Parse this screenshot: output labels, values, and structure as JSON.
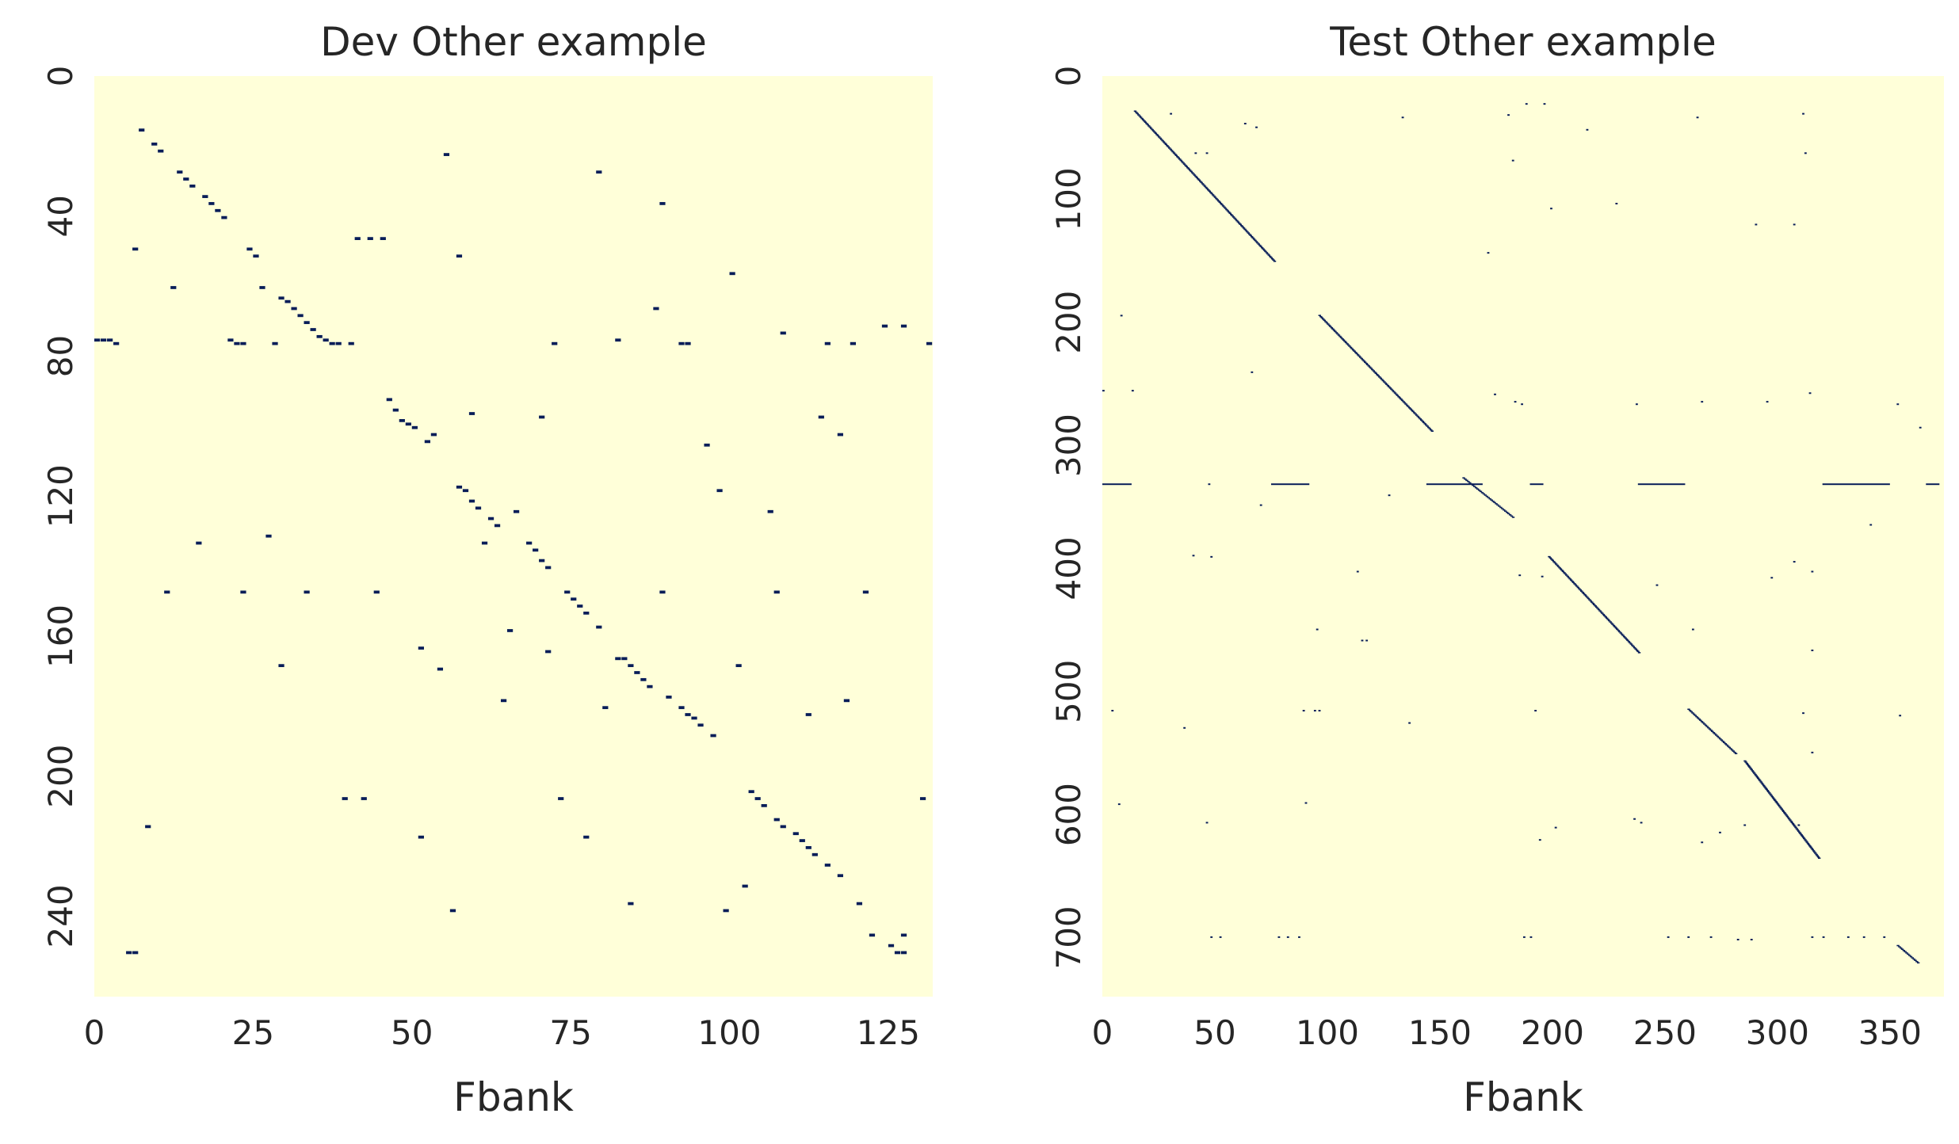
{
  "chart_data": [
    {
      "type": "heatmap",
      "title": "Dev Other example",
      "xlabel": "Fbank",
      "ylabel": "",
      "xlim": [
        0,
        132
      ],
      "ylim": [
        0,
        263
      ],
      "x_ticks": [
        0,
        25,
        50,
        75,
        100,
        125
      ],
      "y_ticks": [
        0,
        40,
        80,
        120,
        160,
        200,
        240
      ],
      "colormap": "YlGnBu",
      "background_color": "#ffffd9",
      "mark_color": "#081d58",
      "cells": [
        [
          7,
          15
        ],
        [
          9,
          19
        ],
        [
          10,
          21
        ],
        [
          13,
          27
        ],
        [
          14,
          29
        ],
        [
          15,
          31
        ],
        [
          17,
          34
        ],
        [
          18,
          36
        ],
        [
          19,
          38
        ],
        [
          20,
          40
        ],
        [
          6,
          49
        ],
        [
          12,
          60
        ],
        [
          24,
          49
        ],
        [
          25,
          51
        ],
        [
          26,
          60
        ],
        [
          29,
          63
        ],
        [
          30,
          64
        ],
        [
          31,
          66
        ],
        [
          32,
          68
        ],
        [
          33,
          70
        ],
        [
          34,
          72
        ],
        [
          35,
          74
        ],
        [
          36,
          75
        ],
        [
          0,
          75
        ],
        [
          1,
          75
        ],
        [
          2,
          75
        ],
        [
          3,
          76
        ],
        [
          21,
          75
        ],
        [
          22,
          76
        ],
        [
          23,
          76
        ],
        [
          28,
          76
        ],
        [
          37,
          76
        ],
        [
          38,
          76
        ],
        [
          40,
          76
        ],
        [
          41,
          46
        ],
        [
          43,
          46
        ],
        [
          45,
          46
        ],
        [
          55,
          22
        ],
        [
          79,
          27
        ],
        [
          89,
          36
        ],
        [
          57,
          51
        ],
        [
          100,
          56
        ],
        [
          88,
          66
        ],
        [
          72,
          76
        ],
        [
          82,
          75
        ],
        [
          92,
          76
        ],
        [
          93,
          76
        ],
        [
          108,
          73
        ],
        [
          115,
          76
        ],
        [
          119,
          76
        ],
        [
          124,
          71
        ],
        [
          127,
          71
        ],
        [
          131,
          76
        ],
        [
          46,
          92
        ],
        [
          47,
          95
        ],
        [
          48,
          98
        ],
        [
          49,
          99
        ],
        [
          50,
          100
        ],
        [
          52,
          104
        ],
        [
          53,
          102
        ],
        [
          59,
          96
        ],
        [
          70,
          97
        ],
        [
          96,
          105
        ],
        [
          114,
          97
        ],
        [
          117,
          102
        ],
        [
          57,
          117
        ],
        [
          58,
          118
        ],
        [
          59,
          121
        ],
        [
          60,
          123
        ],
        [
          62,
          126
        ],
        [
          63,
          128
        ],
        [
          66,
          124
        ],
        [
          61,
          133
        ],
        [
          68,
          133
        ],
        [
          69,
          135
        ],
        [
          70,
          138
        ],
        [
          71,
          140
        ],
        [
          98,
          118
        ],
        [
          106,
          124
        ],
        [
          16,
          133
        ],
        [
          27,
          131
        ],
        [
          11,
          147
        ],
        [
          23,
          147
        ],
        [
          33,
          147
        ],
        [
          44,
          147
        ],
        [
          74,
          147
        ],
        [
          75,
          149
        ],
        [
          76,
          151
        ],
        [
          77,
          153
        ],
        [
          79,
          157
        ],
        [
          89,
          147
        ],
        [
          107,
          147
        ],
        [
          121,
          147
        ],
        [
          51,
          163
        ],
        [
          54,
          169
        ],
        [
          65,
          158
        ],
        [
          71,
          164
        ],
        [
          82,
          166
        ],
        [
          83,
          166
        ],
        [
          84,
          168
        ],
        [
          85,
          170
        ],
        [
          86,
          172
        ],
        [
          87,
          174
        ],
        [
          90,
          177
        ],
        [
          92,
          180
        ],
        [
          93,
          182
        ],
        [
          94,
          183
        ],
        [
          95,
          185
        ],
        [
          97,
          188
        ],
        [
          29,
          168
        ],
        [
          64,
          178
        ],
        [
          80,
          180
        ],
        [
          101,
          168
        ],
        [
          112,
          182
        ],
        [
          118,
          178
        ],
        [
          103,
          204
        ],
        [
          104,
          206
        ],
        [
          105,
          208
        ],
        [
          107,
          212
        ],
        [
          108,
          214
        ],
        [
          110,
          216
        ],
        [
          111,
          218
        ],
        [
          112,
          220
        ],
        [
          113,
          222
        ],
        [
          115,
          225
        ],
        [
          117,
          228
        ],
        [
          102,
          231
        ],
        [
          120,
          236
        ],
        [
          122,
          245
        ],
        [
          125,
          248
        ],
        [
          126,
          250
        ],
        [
          127,
          250
        ],
        [
          39,
          206
        ],
        [
          42,
          206
        ],
        [
          73,
          206
        ],
        [
          130,
          206
        ],
        [
          8,
          214
        ],
        [
          51,
          217
        ],
        [
          77,
          217
        ],
        [
          56,
          238
        ],
        [
          84,
          236
        ],
        [
          99,
          238
        ],
        [
          5,
          250
        ],
        [
          6,
          250
        ],
        [
          127,
          245
        ]
      ]
    },
    {
      "type": "heatmap",
      "title": "Test Other example",
      "xlabel": "Fbank",
      "ylabel": "",
      "xlim": [
        0,
        374
      ],
      "ylim": [
        0,
        748
      ],
      "x_ticks": [
        0,
        50,
        100,
        150,
        200,
        250,
        300,
        350
      ],
      "y_ticks": [
        0,
        100,
        200,
        300,
        400,
        500,
        600,
        700
      ],
      "colormap": "YlGnBu",
      "background_color": "#ffffd9",
      "mark_color": "#081d58",
      "diagonal_segments": [
        {
          "x": [
            14,
            76
          ],
          "y": [
            28,
            150
          ]
        },
        {
          "x": [
            96,
            146
          ],
          "y": [
            194,
            288
          ]
        },
        {
          "x": [
            160,
            182
          ],
          "y": [
            326,
            358
          ]
        },
        {
          "x": [
            198,
            238
          ],
          "y": [
            390,
            468
          ]
        },
        {
          "x": [
            260,
            281
          ],
          "y": [
            514,
            550
          ]
        },
        {
          "x": [
            285,
            318
          ],
          "y": [
            556,
            635
          ]
        },
        {
          "x": [
            353,
            362
          ],
          "y": [
            706,
            720
          ]
        }
      ],
      "horizontal_segments": [
        {
          "y": 331,
          "x": [
            0,
            13
          ]
        },
        {
          "y": 331,
          "x": [
            47,
            48
          ]
        },
        {
          "y": 331,
          "x": [
            75,
            92
          ]
        },
        {
          "y": 331,
          "x": [
            144,
            169
          ]
        },
        {
          "y": 331,
          "x": [
            190,
            196
          ]
        },
        {
          "y": 331,
          "x": [
            238,
            259
          ]
        },
        {
          "y": 331,
          "x": [
            320,
            350
          ]
        },
        {
          "y": 331,
          "x": [
            366,
            372
          ]
        }
      ],
      "points": [
        [
          30,
          30
        ],
        [
          63,
          38
        ],
        [
          68,
          41
        ],
        [
          133,
          33
        ],
        [
          180,
          31
        ],
        [
          188,
          22
        ],
        [
          196,
          22
        ],
        [
          215,
          43
        ],
        [
          264,
          33
        ],
        [
          311,
          30
        ],
        [
          41,
          62
        ],
        [
          46,
          62
        ],
        [
          182,
          68
        ],
        [
          312,
          62
        ],
        [
          199,
          107
        ],
        [
          228,
          103
        ],
        [
          290,
          120
        ],
        [
          307,
          120
        ],
        [
          171,
          143
        ],
        [
          8,
          194
        ],
        [
          0,
          255
        ],
        [
          13,
          255
        ],
        [
          66,
          240
        ],
        [
          174,
          258
        ],
        [
          183,
          264
        ],
        [
          186,
          266
        ],
        [
          237,
          266
        ],
        [
          266,
          264
        ],
        [
          295,
          264
        ],
        [
          314,
          257
        ],
        [
          353,
          266
        ],
        [
          363,
          285
        ],
        [
          48,
          390
        ],
        [
          70,
          348
        ],
        [
          127,
          340
        ],
        [
          40,
          389
        ],
        [
          113,
          402
        ],
        [
          185,
          405
        ],
        [
          195,
          406
        ],
        [
          246,
          413
        ],
        [
          297,
          407
        ],
        [
          307,
          394
        ],
        [
          315,
          402
        ],
        [
          341,
          364
        ],
        [
          95,
          449
        ],
        [
          115,
          458
        ],
        [
          117,
          458
        ],
        [
          262,
          449
        ],
        [
          315,
          466
        ],
        [
          4,
          515
        ],
        [
          36,
          529
        ],
        [
          89,
          515
        ],
        [
          94,
          515
        ],
        [
          96,
          515
        ],
        [
          136,
          525
        ],
        [
          192,
          515
        ],
        [
          311,
          517
        ],
        [
          354,
          519
        ],
        [
          7,
          591
        ],
        [
          46,
          606
        ],
        [
          90,
          590
        ],
        [
          201,
          610
        ],
        [
          236,
          603
        ],
        [
          239,
          606
        ],
        [
          194,
          620
        ],
        [
          266,
          622
        ],
        [
          285,
          608
        ],
        [
          274,
          614
        ],
        [
          309,
          608
        ],
        [
          315,
          549
        ],
        [
          48,
          699
        ],
        [
          52,
          699
        ],
        [
          78,
          699
        ],
        [
          82,
          699
        ],
        [
          87,
          699
        ],
        [
          187,
          699
        ],
        [
          190,
          699
        ],
        [
          251,
          699
        ],
        [
          260,
          699
        ],
        [
          270,
          699
        ],
        [
          282,
          701
        ],
        [
          288,
          701
        ],
        [
          315,
          699
        ],
        [
          320,
          699
        ],
        [
          331,
          699
        ],
        [
          338,
          699
        ],
        [
          347,
          699
        ]
      ]
    }
  ]
}
